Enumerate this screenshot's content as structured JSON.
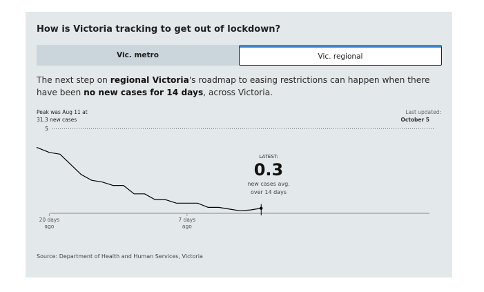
{
  "title": "How is Victoria tracking to get out of lockdown?",
  "tabs": [
    {
      "label": "Vic. metro",
      "selected": false
    },
    {
      "label": "Vic. regional",
      "selected": true
    }
  ],
  "description": {
    "part1": "The next step on ",
    "bold1": "regional Victoria",
    "part2": "'s roadmap to easing restrictions can happen when there have been ",
    "bold2": "no new cases for 14 days",
    "part3": ", across Victoria."
  },
  "peak_note": {
    "line1": "Peak was Aug 11 at",
    "line2": "31.3 new cases"
  },
  "last_updated": {
    "label": "Last updated:",
    "date": "October 5"
  },
  "latest": {
    "label": "LATEST:",
    "value": "0.3",
    "caption1": "new cases avg.",
    "caption2": "over 14 days"
  },
  "source": "Source: Department of Health and Human Services, Victoria",
  "colors": {
    "card_bg": "#e3e8ea",
    "line": "#000000",
    "tab_accent": "#3a86cf",
    "axis": "#999999"
  },
  "chart_data": {
    "type": "line",
    "title": "",
    "xlabel": "",
    "ylabel": "",
    "x_unit": "days ago",
    "xlim": [
      21.2,
      -0.7
    ],
    "ylim": [
      0,
      5
    ],
    "reference_line": {
      "value": 5,
      "label": "5",
      "style": "dotted"
    },
    "x_ticks": [
      {
        "value": 20,
        "line1": "20 days",
        "line2": "ago"
      },
      {
        "value": 7,
        "line1": "7 days",
        "line2": "ago"
      }
    ],
    "grid": false,
    "series": [
      {
        "x": [
          21.2,
          20,
          19,
          18,
          17,
          16,
          15,
          14,
          13,
          12,
          11,
          10,
          9,
          8,
          7,
          6,
          5,
          4,
          3,
          2,
          1,
          0
        ],
        "y": [
          3.9,
          3.6,
          3.5,
          2.9,
          2.3,
          1.95,
          1.85,
          1.65,
          1.65,
          1.15,
          1.15,
          0.8,
          0.8,
          0.6,
          0.6,
          0.6,
          0.35,
          0.35,
          0.25,
          0.15,
          0.2,
          0.3
        ]
      }
    ]
  }
}
